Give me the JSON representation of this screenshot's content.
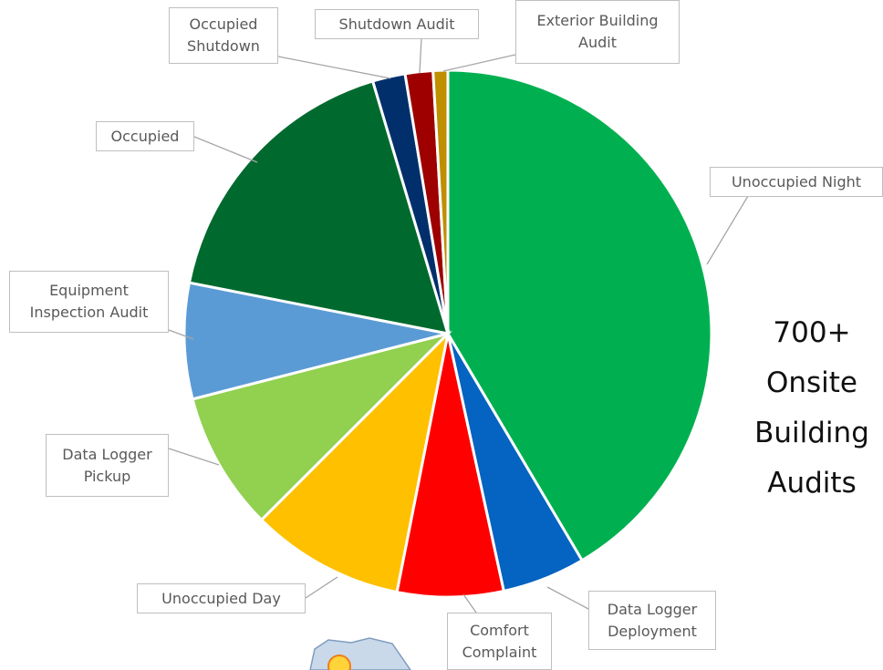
{
  "chart_data": {
    "type": "pie",
    "categories": [
      "Unoccupied Night",
      "Data Logger Deployment",
      "Comfort Complaint",
      "Unoccupied Day",
      "Data Logger Pickup",
      "Equipment Inspection Audit",
      "Occupied",
      "Occupied Shutdown",
      "Shutdown Audit",
      "Exterior Building Audit"
    ],
    "values": [
      41.5,
      5.1,
      6.5,
      9.4,
      8.5,
      7.1,
      17.3,
      2.0,
      1.7,
      0.9
    ],
    "colors": [
      "#00b050",
      "#0563c1",
      "#ff0000",
      "#ffc000",
      "#92d050",
      "#5b9bd5",
      "#006a2e",
      "#002f6c",
      "#9e0000",
      "#bf8f00"
    ],
    "annotation": "700+ Onsite Building Audits"
  }
}
